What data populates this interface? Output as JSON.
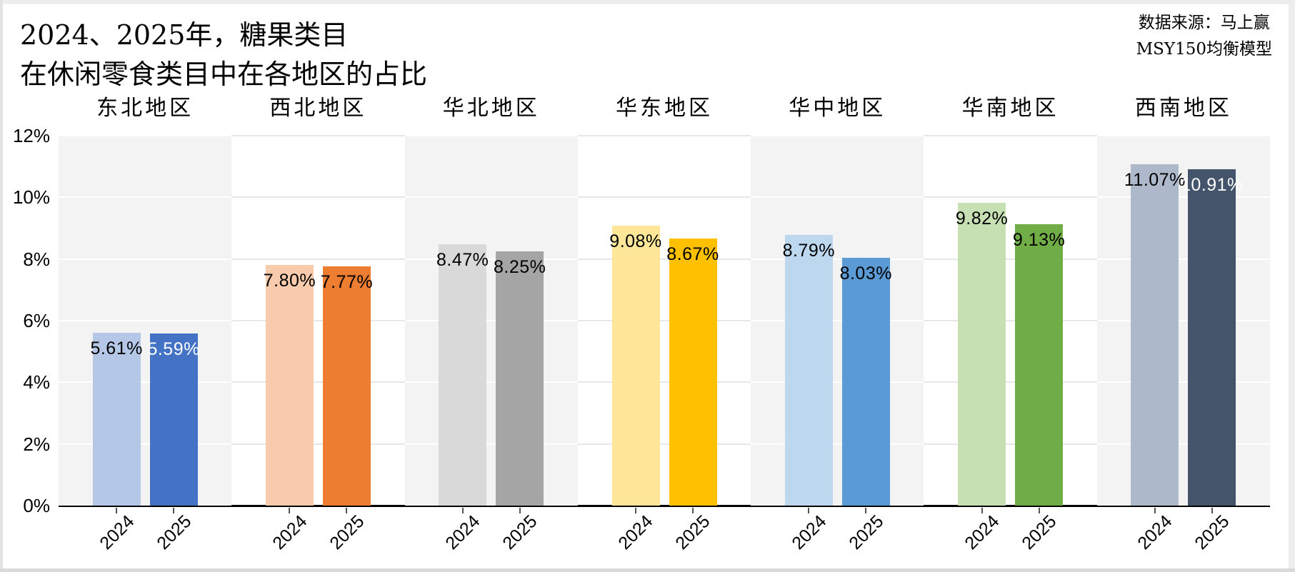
{
  "title": {
    "line1": "2024、2025年，糖果类目",
    "line2": "在休闲零食类目中在各地区的占比"
  },
  "source": {
    "line1": "数据来源：马上赢",
    "line2": "MSY150均衡模型"
  },
  "chart_data": {
    "type": "bar",
    "title": "2024、2025年，糖果类目在休闲零食类目中在各地区的占比",
    "source": [
      "数据来源：马上赢",
      "MSY150均衡模型"
    ],
    "categories": [
      "东北地区",
      "西北地区",
      "华北地区",
      "华东地区",
      "华中地区",
      "华南地区",
      "西南地区"
    ],
    "series": [
      {
        "name": "2024",
        "values": [
          5.61,
          7.8,
          8.47,
          9.08,
          8.79,
          9.82,
          11.07
        ],
        "labels": [
          "5.61%",
          "7.80%",
          "8.47%",
          "9.08%",
          "8.79%",
          "9.82%",
          "11.07%"
        ],
        "colors": [
          "#b4c7e7",
          "#f8cbad",
          "#d9d9d9",
          "#ffe699",
          "#bdd7ee",
          "#c6e0b4",
          "#adb9ca"
        ],
        "label_colors": [
          "#000000",
          "#000000",
          "#000000",
          "#000000",
          "#000000",
          "#000000",
          "#000000"
        ]
      },
      {
        "name": "2025",
        "values": [
          5.59,
          7.77,
          8.25,
          8.67,
          8.03,
          9.13,
          10.91
        ],
        "labels": [
          "5.59%",
          "7.77%",
          "8.25%",
          "8.67%",
          "8.03%",
          "9.13%",
          "10.91%"
        ],
        "colors": [
          "#4472c4",
          "#ed7d31",
          "#a5a5a5",
          "#ffc000",
          "#5b9bd5",
          "#70ad47",
          "#44546a"
        ],
        "label_colors": [
          "#ffffff",
          "#000000",
          "#000000",
          "#000000",
          "#000000",
          "#000000",
          "#ffffff"
        ]
      }
    ],
    "xlabel": "",
    "ylabel": "",
    "ylim": [
      0,
      12
    ],
    "yticks": {
      "values": [
        0,
        2,
        4,
        6,
        8,
        10,
        12
      ],
      "labels": [
        "0%",
        "2%",
        "4%",
        "6%",
        "8%",
        "10%",
        "12%"
      ]
    },
    "grid": true,
    "legend_position": "none",
    "panel_band_color": "#f3f3f3",
    "gridline_on_band_color": "#ffffff",
    "gridline_on_white_color": "#e7e7e7",
    "axis_line_color": "#000000"
  }
}
